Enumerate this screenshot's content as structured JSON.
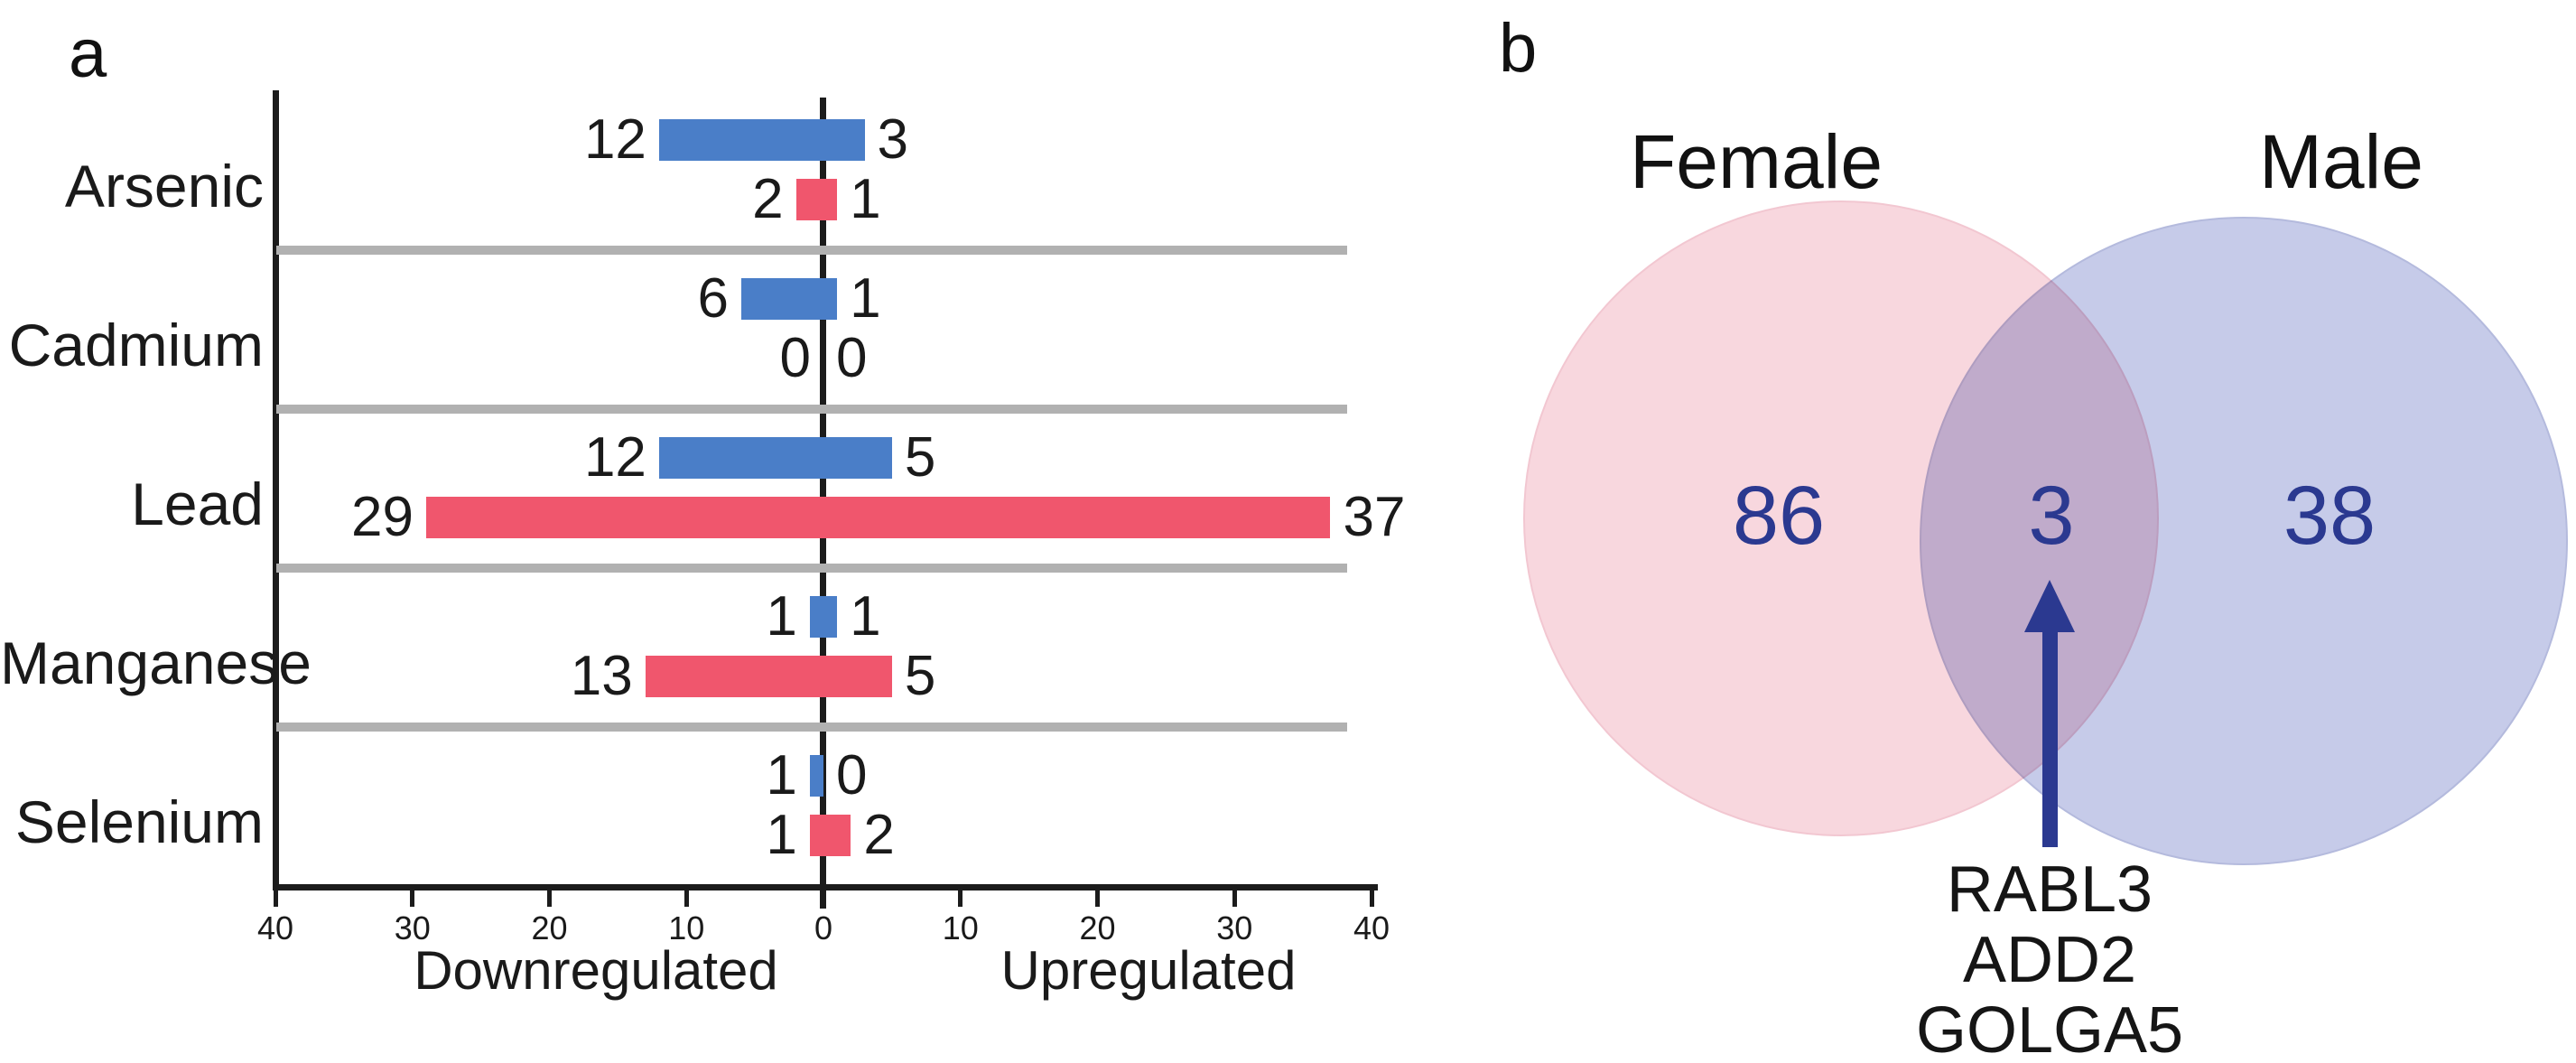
{
  "panels": {
    "a": {
      "label": "a"
    },
    "b": {
      "label": "b"
    }
  },
  "colors": {
    "bar_blue": "#4a7ec8",
    "bar_red": "#f0566d",
    "separator": "#b1b1b1",
    "axis": "#1c1c1c",
    "venn_female_fill": "#f8d7de",
    "venn_male_fill": "#c6cbe9",
    "venn_number": "#2b3990",
    "arrow": "#2b3990"
  },
  "chart_data": [
    {
      "type": "bar",
      "variant": "diverging-horizontal",
      "title": "",
      "categories": [
        "Arsenic",
        "Cadmium",
        "Lead",
        "Manganese",
        "Selenium"
      ],
      "series": [
        {
          "name": "blue",
          "color": "#4a7ec8",
          "down": [
            12,
            6,
            12,
            1,
            1
          ],
          "up": [
            3,
            1,
            5,
            1,
            0
          ]
        },
        {
          "name": "red",
          "color": "#f0566d",
          "down": [
            2,
            0,
            29,
            13,
            1
          ],
          "up": [
            1,
            0,
            37,
            5,
            2
          ]
        }
      ],
      "axis": {
        "left_label": "Downregulated",
        "right_label": "Upregulated",
        "ticks": [
          "40",
          "30",
          "20",
          "10",
          "0",
          "10",
          "20",
          "30",
          "40"
        ],
        "max_each_side": 40
      },
      "grid": "gray separator line between each category",
      "legend": "none"
    },
    {
      "type": "venn",
      "sets": [
        {
          "label": "Female",
          "value": 86,
          "color": "#f8d7de"
        },
        {
          "label": "Male",
          "value": 38,
          "color": "#c6cbe9"
        }
      ],
      "overlap": {
        "value": 3,
        "genes": [
          "RABL3",
          "ADD2",
          "GOLGA5"
        ]
      },
      "annotation": "arrow pointing from gene list up to overlap count"
    }
  ]
}
